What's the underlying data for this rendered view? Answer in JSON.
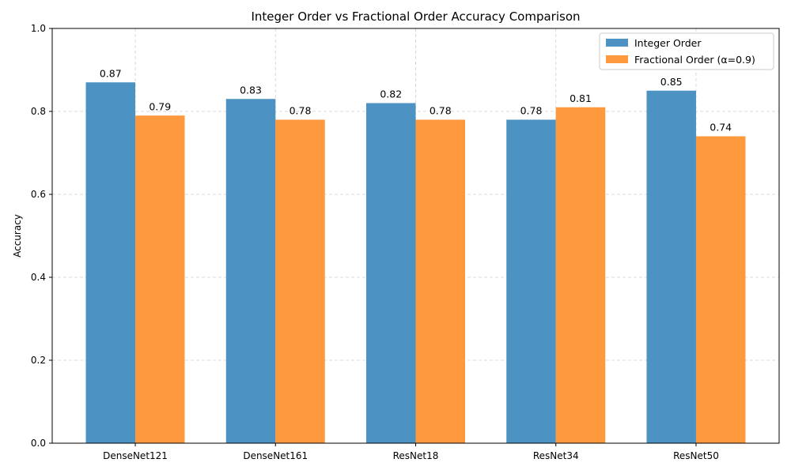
{
  "chart_data": {
    "type": "bar",
    "title": "Integer Order vs Fractional Order Accuracy Comparison",
    "xlabel": "",
    "ylabel": "Accuracy",
    "ylim": [
      0,
      1.0
    ],
    "yticks": [
      "0.0",
      "0.2",
      "0.4",
      "0.6",
      "0.8",
      "1.0"
    ],
    "grid": true,
    "legend_position": "top-right",
    "categories": [
      "DenseNet121",
      "DenseNet161",
      "ResNet18",
      "ResNet34",
      "ResNet50"
    ],
    "series": [
      {
        "name": "Integer Order",
        "color": "#4c92c3",
        "values": [
          0.87,
          0.83,
          0.82,
          0.78,
          0.85
        ],
        "labels": [
          "0.87",
          "0.83",
          "0.82",
          "0.78",
          "0.85"
        ]
      },
      {
        "name": "Fractional Order (α=0.9)",
        "color": "#ff993e",
        "values": [
          0.79,
          0.78,
          0.78,
          0.81,
          0.74
        ],
        "labels": [
          "0.79",
          "0.78",
          "0.78",
          "0.81",
          "0.74"
        ]
      }
    ]
  }
}
